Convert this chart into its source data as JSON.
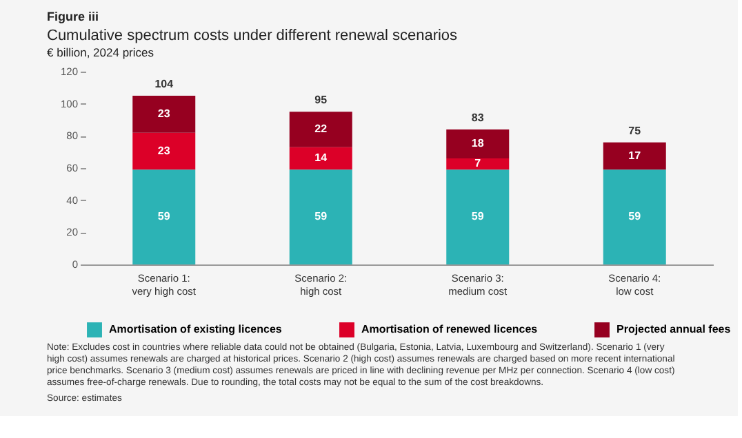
{
  "chart_data": {
    "type": "bar",
    "stacked": true,
    "title": "Cumulative spectrum costs under different renewal scenarios",
    "subtitle": "€ billion, 2024 prices",
    "categories": [
      "Scenario 1:\nvery high cost",
      "Scenario 2:\nhigh cost",
      "Scenario 3:\nmedium cost",
      "Scenario 4:\nlow cost"
    ],
    "series": [
      {
        "name": "Amortisation of existing licences",
        "color": "#2cb3b5",
        "values": [
          59,
          59,
          59,
          59
        ]
      },
      {
        "name": "Amortisation of renewed licences",
        "color": "#dc0028",
        "values": [
          23,
          14,
          7,
          null
        ]
      },
      {
        "name": "Projected annual fees",
        "color": "#960020",
        "values": [
          23,
          22,
          18,
          17
        ]
      }
    ],
    "totals": [
      "104",
      "95",
      "83",
      "75"
    ],
    "data_labels": true,
    "ylim": [
      0,
      120
    ],
    "yticks": [
      0,
      20,
      40,
      60,
      80,
      100,
      120
    ],
    "grid": false,
    "legend": "bottom",
    "annotations": [
      "Figure iii",
      "Note: Excludes cost in countries where reliable data could not be obtained (Bulgaria, Estonia, Latvia, Luxembourg and Switzerland). Scenario 1 (very high cost) assumes renewals are charged at historical prices. Scenario 2 (high cost) assumes renewals are charged based on more recent international price benchmarks. Scenario 3 (medium cost) assumes renewals are priced in line with declining revenue per MHz per connection. Scenario 4 (low cost) assumes free-of-charge renewals. Due to rounding, the total costs may not be equal to the sum of the cost breakdowns.",
      "Source: estimates"
    ]
  }
}
